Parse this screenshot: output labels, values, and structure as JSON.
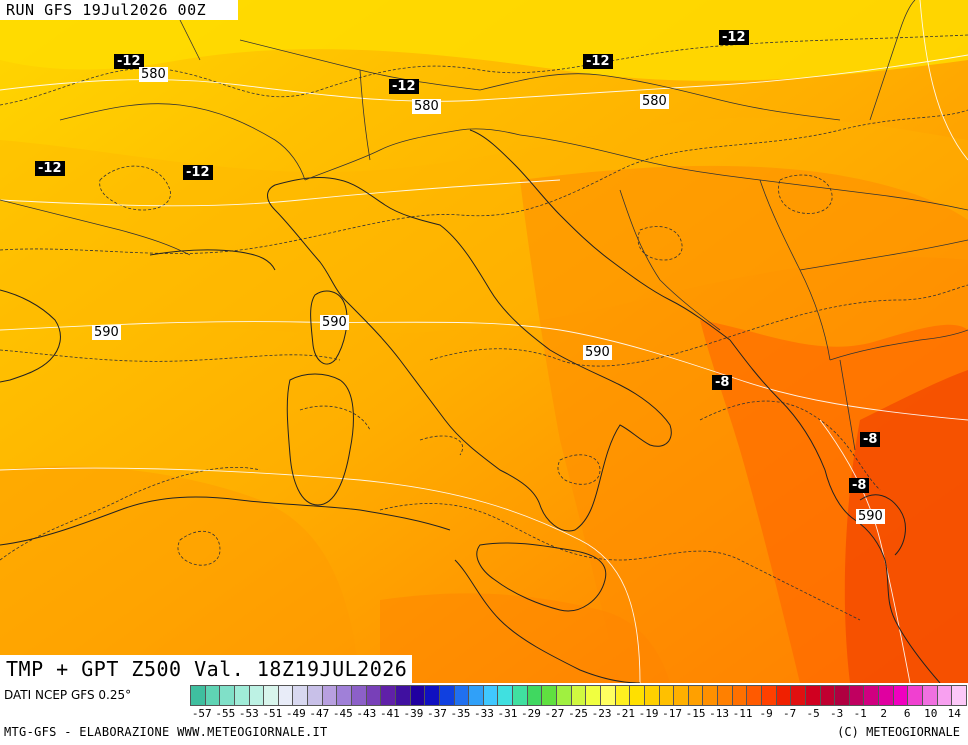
{
  "header": {
    "run_label": "RUN GFS 19Jul2026 00Z"
  },
  "valid": {
    "label": "TMP + GPT Z500 Val. 18Z19JUL2026"
  },
  "contour_labels": {
    "gpt": [
      "580",
      "580",
      "580",
      "590",
      "590",
      "590",
      "590"
    ],
    "tmp": [
      "-12",
      "-12",
      "-12",
      "-12",
      "-12",
      "-12",
      "-8",
      "-8",
      "-8"
    ]
  },
  "footer": {
    "data_source": "DATI NCEP GFS 0.25°",
    "credit_left": "MTG-GFS - ELABORAZIONE WWW.METEOGIORNALE.IT",
    "credit_right": "(C) METEOGIORNALE"
  },
  "colorbar": {
    "tick_labels": [
      "-57",
      "-55",
      "-53",
      "-51",
      "-49",
      "-47",
      "-45",
      "-43",
      "-41",
      "-39",
      "-37",
      "-35",
      "-33",
      "-31",
      "-29",
      "-27",
      "-25",
      "-23",
      "-21",
      "-19",
      "-17",
      "-15",
      "-13",
      "-11",
      "-9",
      "-7",
      "-5",
      "-3",
      "-1",
      "2",
      "6",
      "10",
      "14"
    ],
    "colors": [
      "#3fbf9f",
      "#5fd4b4",
      "#80e0c8",
      "#a0ecd8",
      "#bdf2e4",
      "#d8f5ec",
      "#e8ecf8",
      "#d8d8f0",
      "#c8c0e8",
      "#b8a0e0",
      "#a080d8",
      "#8c60c8",
      "#7840b8",
      "#6020a8",
      "#4010a0",
      "#2000a0",
      "#1010c0",
      "#1040e0",
      "#2070f0",
      "#30a0f8",
      "#40c8ff",
      "#40e0e0",
      "#40e0a0",
      "#40d860",
      "#60e040",
      "#a0f040",
      "#d0f840",
      "#f0ff40",
      "#ffff60",
      "#fff020",
      "#ffe000",
      "#ffd000",
      "#ffc000",
      "#ffb000",
      "#ffa000",
      "#ff9000",
      "#ff8000",
      "#ff7000",
      "#ff5a00",
      "#ff4000",
      "#f02000",
      "#e01010",
      "#d00020",
      "#c00030",
      "#b00040",
      "#c00060",
      "#d00080",
      "#e000a0",
      "#f000c0",
      "#f040d0",
      "#f070e0",
      "#f8a0f0",
      "#fcc8f8"
    ]
  }
}
